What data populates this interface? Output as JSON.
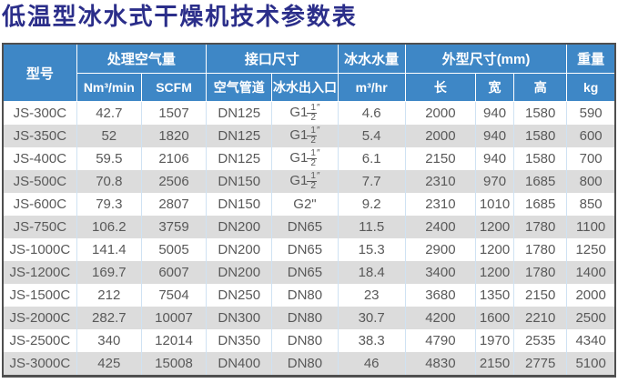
{
  "title": "低温型冰水式干燥机技术参数表",
  "table": {
    "groups": [
      {
        "label": "型号",
        "sub": []
      },
      {
        "label": "处理空气量",
        "sub": [
          "Nm³/min",
          "SCFM"
        ]
      },
      {
        "label": "接口尺寸",
        "sub": [
          "空气管道",
          "冰水出入口"
        ]
      },
      {
        "label": "冰水水量",
        "sub": [
          "m³/hr"
        ]
      },
      {
        "label": "外型尺寸(mm)",
        "sub": [
          "长",
          "宽",
          "高"
        ]
      },
      {
        "label": "重量",
        "sub": [
          "kg"
        ]
      }
    ],
    "rows": [
      [
        "JS-300C",
        "42.7",
        "1507",
        "DN125",
        "G1-1/2\"",
        "4.6",
        "2000",
        "940",
        "1580",
        "590"
      ],
      [
        "JS-350C",
        "52",
        "1820",
        "DN125",
        "G1-1/2\"",
        "5.4",
        "2000",
        "940",
        "1580",
        "600"
      ],
      [
        "JS-400C",
        "59.5",
        "2106",
        "DN125",
        "G1-1/2\"",
        "6.1",
        "2150",
        "940",
        "1580",
        "700"
      ],
      [
        "JS-500C",
        "70.8",
        "2506",
        "DN150",
        "G1-1/2\"",
        "7.7",
        "2310",
        "970",
        "1685",
        "800"
      ],
      [
        "JS-600C",
        "79.3",
        "2807",
        "DN150",
        "G2\"",
        "9.2",
        "2310",
        "1010",
        "1685",
        "850"
      ],
      [
        "JS-750C",
        "106.2",
        "3759",
        "DN200",
        "DN65",
        "11.5",
        "2400",
        "1200",
        "1780",
        "1100"
      ],
      [
        "JS-1000C",
        "141.4",
        "5005",
        "DN200",
        "DN65",
        "15.3",
        "2900",
        "1200",
        "1780",
        "1250"
      ],
      [
        "JS-1200C",
        "169.7",
        "6007",
        "DN200",
        "DN65",
        "18.4",
        "3400",
        "1200",
        "1780",
        "1400"
      ],
      [
        "JS-1500C",
        "212",
        "7504",
        "DN250",
        "DN80",
        "23",
        "3680",
        "1350",
        "2150",
        "2000"
      ],
      [
        "JS-2000C",
        "282.7",
        "10007",
        "DN300",
        "DN80",
        "30.7",
        "4200",
        "1600",
        "2210",
        "2500"
      ],
      [
        "JS-2500C",
        "340",
        "12014",
        "DN350",
        "DN80",
        "38.3",
        "4790",
        "1970",
        "2535",
        "4340"
      ],
      [
        "JS-3000C",
        "425",
        "15008",
        "DN400",
        "DN80",
        "46",
        "4830",
        "2150",
        "2775",
        "5100"
      ]
    ]
  }
}
